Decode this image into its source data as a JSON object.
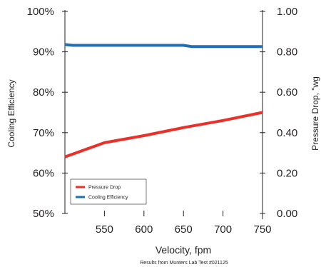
{
  "colors": {
    "pressure_drop": "#e8312a",
    "cooling_efficiency": "#1f6fb2",
    "axis": "#231f20"
  },
  "chart_data": {
    "type": "line",
    "xlabel": "Velocity, fpm",
    "ylabel_left": "Cooling Efficiency",
    "ylabel_right": "Pressure Drop, \"wg",
    "footnote": "Results from Munters Lab Test #021125",
    "x_range": [
      500,
      750
    ],
    "x_ticks": [
      550,
      600,
      650,
      700,
      750
    ],
    "x_tick_labels": [
      "550",
      "600",
      "650",
      "700",
      "750"
    ],
    "y_left_range": [
      50,
      100
    ],
    "y_left_ticks": [
      50,
      60,
      70,
      80,
      90,
      100
    ],
    "y_left_tick_labels": [
      "50%",
      "60%",
      "70%",
      "80%",
      "90%",
      "100%"
    ],
    "y_right_range": [
      0,
      1
    ],
    "y_right_ticks": [
      0,
      0.2,
      0.4,
      0.6,
      0.8,
      1.0
    ],
    "y_right_tick_labels": [
      "0.00",
      "0.20",
      "0.40",
      "0.60",
      "0.80",
      "1.00"
    ],
    "grid": false,
    "legend_position": "bottom-left",
    "series": [
      {
        "name": "Pressure Drop",
        "axis": "right",
        "color_key": "pressure_drop",
        "x": [
          500,
          550,
          600,
          650,
          700,
          750
        ],
        "y": [
          0.28,
          0.35,
          0.385,
          0.425,
          0.46,
          0.5
        ]
      },
      {
        "name": "Cooling Efficiency",
        "axis": "left",
        "color_key": "cooling_efficiency",
        "x": [
          500,
          510,
          550,
          600,
          650,
          660,
          700,
          750
        ],
        "y": [
          91.8,
          91.6,
          91.6,
          91.6,
          91.6,
          91.3,
          91.3,
          91.3
        ]
      }
    ]
  }
}
